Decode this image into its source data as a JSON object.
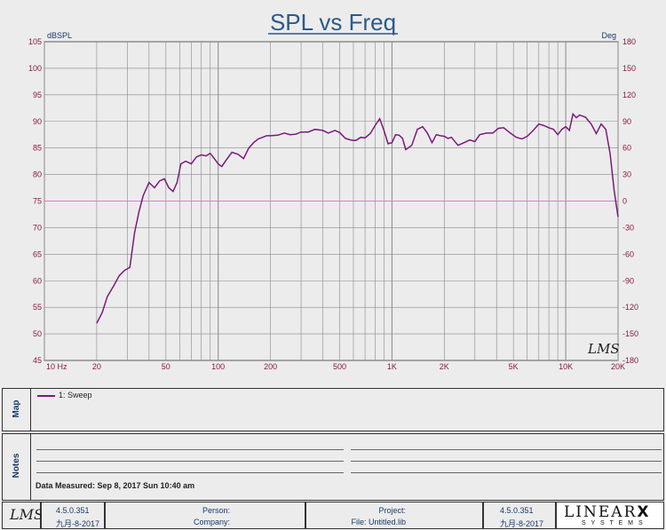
{
  "chart_data": {
    "type": "line",
    "title": "SPL vs Freq",
    "ylabel_left": "dBSPL",
    "ylabel_right": "Deg",
    "xscale": "log",
    "xlim": [
      10,
      20000
    ],
    "ylim": [
      45,
      105
    ],
    "ylim_right": [
      -180,
      180
    ],
    "grid": true,
    "x_ticks": [
      "10 Hz",
      "20",
      "50",
      "100",
      "200",
      "500",
      "1K",
      "2K",
      "5K",
      "10K",
      "20K"
    ],
    "x_tick_values": [
      10,
      20,
      50,
      100,
      200,
      500,
      1000,
      2000,
      5000,
      10000,
      20000
    ],
    "y_ticks_left": [
      "105",
      "100",
      "95",
      "90",
      "85",
      "80",
      "75",
      "70",
      "65",
      "60",
      "55",
      "50",
      "45"
    ],
    "y_tick_values_left": [
      105,
      100,
      95,
      90,
      85,
      80,
      75,
      70,
      65,
      60,
      55,
      50,
      45
    ],
    "y_ticks_right": [
      "180",
      "150",
      "120",
      "90",
      "60",
      "30",
      "0",
      "-30",
      "-60",
      "-90",
      "-120",
      "-150",
      "-180"
    ],
    "reference_line_y": 75,
    "series": [
      {
        "name": "1: Sweep",
        "color": "#7a1a7a",
        "x": [
          20,
          21.5,
          23,
          25,
          27,
          29,
          31,
          33,
          35,
          37,
          40,
          43,
          46,
          49,
          52,
          55,
          58,
          61,
          65,
          70,
          75,
          80,
          85,
          90,
          95,
          100,
          105,
          110,
          120,
          130,
          140,
          150,
          160,
          170,
          180,
          190,
          200,
          220,
          240,
          260,
          280,
          300,
          330,
          360,
          400,
          430,
          470,
          500,
          540,
          580,
          620,
          660,
          700,
          750,
          800,
          850,
          900,
          950,
          1000,
          1050,
          1100,
          1150,
          1200,
          1300,
          1400,
          1500,
          1600,
          1700,
          1800,
          1900,
          2000,
          2100,
          2200,
          2400,
          2600,
          2800,
          3000,
          3200,
          3500,
          3800,
          4100,
          4400,
          4800,
          5200,
          5600,
          6000,
          6500,
          7000,
          7500,
          8000,
          8500,
          9000,
          9500,
          10000,
          10500,
          11000,
          11500,
          12000,
          13000,
          14000,
          15000,
          16000,
          17000,
          18000,
          19000,
          20000
        ],
        "y": [
          52,
          54,
          57,
          59,
          61,
          62,
          62.5,
          69,
          73,
          76,
          78.5,
          77.5,
          78.8,
          79.2,
          77.5,
          76.8,
          78.5,
          82,
          82.5,
          82,
          83.3,
          83.7,
          83.5,
          84,
          83,
          82,
          81.5,
          82.5,
          84.2,
          83.8,
          83,
          85,
          86,
          86.7,
          87,
          87.3,
          87.3,
          87.4,
          87.8,
          87.5,
          87.6,
          88,
          88,
          88.5,
          88.3,
          87.8,
          88.3,
          87.9,
          86.8,
          86.5,
          86.4,
          87,
          86.9,
          87.7,
          89.2,
          90.5,
          88.3,
          85.8,
          86,
          87.5,
          87.4,
          86.8,
          84.7,
          85.5,
          88.5,
          89,
          87.8,
          86,
          87.5,
          87.3,
          87.2,
          86.8,
          87,
          85.5,
          86,
          86.5,
          86.2,
          87.5,
          87.8,
          87.8,
          88.7,
          88.8,
          87.8,
          87,
          86.7,
          87.2,
          88.3,
          89.5,
          89.2,
          88.8,
          88.5,
          87.5,
          88.5,
          89,
          88.3,
          91.4,
          90.7,
          91.2,
          90.8,
          89.5,
          87.7,
          89.5,
          88.5,
          84,
          77,
          72
        ]
      }
    ]
  },
  "legend": {
    "label": "1: Sweep"
  },
  "map_label": "Map",
  "notes_label": "Notes",
  "notes_measured": "Data Measured: Sep 8, 2017 Sun 10:40 am",
  "logo_left": "LMS",
  "logo_right_line1": "LINEAR",
  "logo_right_x": "X",
  "logo_right_line2": "S Y S T E M S",
  "chart_watermark": "LMS",
  "footer": {
    "version_left": "4.5.0.351",
    "date_left": "九月-8-2017",
    "person_label": "Person:",
    "company_label": "Company:",
    "project_label": "Project:",
    "file_label": "File: Untitled.lib",
    "version_right": "4.5.0.351",
    "date_right": "九月-8-2017"
  },
  "colors": {
    "title": "#2a5a8a",
    "grid": "#888888",
    "series": "#7a1a7a",
    "ref_line": "#d080d0",
    "tick_text": "#8a1a3a",
    "panel": "#ececec"
  }
}
